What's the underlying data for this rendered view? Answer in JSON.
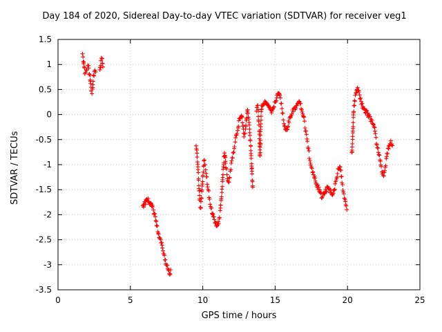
{
  "chart_data": {
    "type": "scatter",
    "marker": "plus",
    "series_color": "#ff0000",
    "grid": true,
    "legend": "none",
    "title": "Day 184 of 2020, Sidereal Day-to-day VTEC variation (SDTVAR) for receiver veg1",
    "xlabel": "GPS time / hours",
    "ylabel": "SDTVAR / TECUs",
    "xlim": [
      0,
      25
    ],
    "ylim": [
      -3.5,
      1.5
    ],
    "xticks": [
      0,
      5,
      10,
      15,
      20,
      25
    ],
    "yticks": [
      -3.5,
      -3,
      -2.5,
      -2,
      -1.5,
      -1,
      -0.5,
      0,
      0.5,
      1,
      1.5
    ],
    "segments": [
      [
        [
          1.7,
          1.25
        ],
        [
          1.75,
          1.1
        ],
        [
          1.8,
          0.95
        ],
        [
          1.85,
          0.85
        ],
        [
          1.9,
          0.8
        ],
        [
          1.95,
          0.85
        ],
        [
          2.0,
          0.92
        ],
        [
          2.05,
          1.0
        ],
        [
          2.1,
          0.95
        ],
        [
          2.15,
          0.85
        ],
        [
          2.2,
          0.75
        ],
        [
          2.25,
          0.6
        ],
        [
          2.3,
          0.5
        ],
        [
          2.35,
          0.45
        ],
        [
          2.4,
          0.55
        ],
        [
          2.45,
          0.75
        ],
        [
          2.5,
          0.85
        ],
        [
          2.55,
          0.9
        ],
        [
          2.6,
          0.85
        ]
      ],
      [
        [
          2.9,
          0.85
        ],
        [
          2.95,
          1.0
        ],
        [
          3.0,
          1.15
        ],
        [
          3.05,
          1.1
        ],
        [
          3.1,
          0.95
        ]
      ],
      [
        [
          5.85,
          -1.85
        ],
        [
          5.95,
          -1.8
        ],
        [
          6.05,
          -1.75
        ],
        [
          6.15,
          -1.7
        ],
        [
          6.25,
          -1.72
        ],
        [
          6.35,
          -1.76
        ],
        [
          6.45,
          -1.8
        ],
        [
          6.55,
          -1.88
        ],
        [
          6.65,
          -1.98
        ],
        [
          6.75,
          -2.1
        ],
        [
          6.85,
          -2.25
        ],
        [
          6.95,
          -2.4
        ],
        [
          7.05,
          -2.5
        ],
        [
          7.15,
          -2.6
        ],
        [
          7.25,
          -2.7
        ],
        [
          7.35,
          -2.82
        ],
        [
          7.45,
          -2.95
        ],
        [
          7.55,
          -3.05
        ],
        [
          7.65,
          -3.15
        ],
        [
          7.72,
          -3.22
        ],
        [
          7.78,
          -3.1
        ]
      ],
      [
        [
          9.55,
          -0.6
        ],
        [
          9.6,
          -0.8
        ],
        [
          9.65,
          -1.0
        ],
        [
          9.7,
          -1.25
        ],
        [
          9.75,
          -1.5
        ],
        [
          9.8,
          -1.75
        ],
        [
          9.85,
          -1.9
        ],
        [
          9.9,
          -1.7
        ],
        [
          9.95,
          -1.45
        ],
        [
          10.0,
          -1.25
        ],
        [
          10.05,
          -1.05
        ],
        [
          10.1,
          -0.9
        ],
        [
          10.2,
          -1.1
        ],
        [
          10.3,
          -1.35
        ],
        [
          10.4,
          -1.55
        ],
        [
          10.5,
          -1.75
        ],
        [
          10.6,
          -1.9
        ],
        [
          10.7,
          -2.0
        ],
        [
          10.8,
          -2.1
        ],
        [
          10.9,
          -2.2
        ],
        [
          11.0,
          -2.25
        ],
        [
          11.1,
          -2.15
        ],
        [
          11.2,
          -1.95
        ],
        [
          11.3,
          -1.6
        ],
        [
          11.4,
          -1.2
        ],
        [
          11.5,
          -0.75
        ],
        [
          11.55,
          -0.9
        ],
        [
          11.6,
          -1.05
        ],
        [
          11.7,
          -1.25
        ],
        [
          11.8,
          -1.35
        ],
        [
          11.9,
          -1.15
        ],
        [
          12.0,
          -0.95
        ],
        [
          12.1,
          -0.8
        ],
        [
          12.2,
          -0.6
        ],
        [
          12.3,
          -0.45
        ],
        [
          12.4,
          -0.3
        ],
        [
          12.5,
          -0.15
        ],
        [
          12.6,
          -0.05
        ],
        [
          12.7,
          0.0
        ],
        [
          12.78,
          -0.25
        ],
        [
          12.85,
          -0.45
        ],
        [
          12.95,
          -0.3
        ],
        [
          13.0,
          -0.15
        ],
        [
          13.05,
          0.0
        ],
        [
          13.1,
          0.1
        ],
        [
          13.2,
          -0.15
        ],
        [
          13.3,
          -0.6
        ],
        [
          13.38,
          -1.05
        ],
        [
          13.45,
          -1.45
        ]
      ],
      [
        [
          13.7,
          0.1
        ],
        [
          13.8,
          0.15
        ],
        [
          13.9,
          -0.3
        ],
        [
          13.95,
          -0.85
        ],
        [
          14.0,
          -0.3
        ],
        [
          14.05,
          0.15
        ],
        [
          14.15,
          0.2
        ],
        [
          14.3,
          0.25
        ],
        [
          14.45,
          0.2
        ],
        [
          14.6,
          0.15
        ],
        [
          14.75,
          0.05
        ],
        [
          14.85,
          0.1
        ],
        [
          15.0,
          0.25
        ],
        [
          15.1,
          0.35
        ],
        [
          15.2,
          0.45
        ],
        [
          15.3,
          0.4
        ],
        [
          15.4,
          0.25
        ],
        [
          15.5,
          0.05
        ],
        [
          15.6,
          -0.15
        ],
        [
          15.7,
          -0.25
        ],
        [
          15.8,
          -0.3
        ],
        [
          15.9,
          -0.2
        ],
        [
          16.0,
          -0.1
        ],
        [
          16.1,
          0.0
        ],
        [
          16.2,
          0.05
        ],
        [
          16.35,
          0.1
        ],
        [
          16.5,
          0.18
        ],
        [
          16.65,
          0.25
        ],
        [
          16.8,
          0.15
        ],
        [
          16.9,
          0.05
        ],
        [
          17.0,
          -0.1
        ],
        [
          17.1,
          -0.3
        ],
        [
          17.2,
          -0.5
        ],
        [
          17.3,
          -0.7
        ],
        [
          17.4,
          -0.9
        ],
        [
          17.5,
          -1.05
        ]
      ],
      [
        [
          17.55,
          -1.1
        ],
        [
          17.65,
          -1.2
        ],
        [
          17.75,
          -1.3
        ],
        [
          17.85,
          -1.4
        ],
        [
          17.95,
          -1.45
        ],
        [
          18.05,
          -1.5
        ],
        [
          18.15,
          -1.58
        ],
        [
          18.25,
          -1.65
        ],
        [
          18.35,
          -1.6
        ],
        [
          18.45,
          -1.55
        ],
        [
          18.55,
          -1.5
        ],
        [
          18.65,
          -1.45
        ],
        [
          18.75,
          -1.5
        ],
        [
          18.85,
          -1.55
        ],
        [
          18.95,
          -1.6
        ],
        [
          19.05,
          -1.55
        ],
        [
          19.15,
          -1.4
        ],
        [
          19.25,
          -1.25
        ],
        [
          19.35,
          -1.12
        ],
        [
          19.45,
          -1.05
        ],
        [
          19.55,
          -1.15
        ],
        [
          19.65,
          -1.4
        ],
        [
          19.75,
          -1.6
        ],
        [
          19.85,
          -1.75
        ],
        [
          19.95,
          -1.9
        ]
      ],
      [
        [
          20.3,
          -0.8
        ],
        [
          20.35,
          -0.45
        ],
        [
          20.4,
          -0.1
        ],
        [
          20.45,
          0.15
        ],
        [
          20.5,
          0.3
        ],
        [
          20.6,
          0.45
        ],
        [
          20.7,
          0.55
        ],
        [
          20.8,
          0.45
        ],
        [
          20.9,
          0.3
        ],
        [
          21.0,
          0.2
        ],
        [
          21.1,
          0.12
        ],
        [
          21.2,
          0.08
        ],
        [
          21.3,
          0.05
        ],
        [
          21.4,
          0.0
        ],
        [
          21.5,
          -0.05
        ],
        [
          21.6,
          -0.1
        ],
        [
          21.7,
          -0.15
        ],
        [
          21.8,
          -0.22
        ],
        [
          21.9,
          -0.35
        ],
        [
          22.0,
          -0.55
        ],
        [
          22.1,
          -0.7
        ],
        [
          22.2,
          -0.85
        ],
        [
          22.3,
          -1.0
        ],
        [
          22.4,
          -1.15
        ],
        [
          22.5,
          -1.25
        ],
        [
          22.6,
          -1.05
        ],
        [
          22.7,
          -0.85
        ],
        [
          22.8,
          -0.7
        ],
        [
          22.9,
          -0.6
        ],
        [
          23.0,
          -0.55
        ],
        [
          23.1,
          -0.62
        ]
      ]
    ]
  }
}
